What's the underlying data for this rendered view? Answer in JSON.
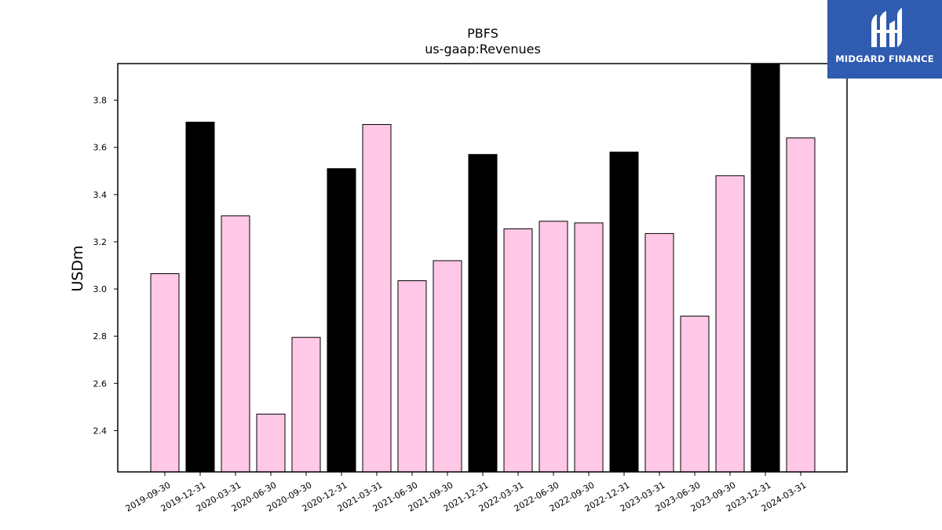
{
  "brand": {
    "name": "MIDGARD FINANCE",
    "background_color": "#2f5bb0"
  },
  "chart_data": {
    "type": "bar",
    "title": "PBFS",
    "subtitle": "us-gaap:Revenues",
    "xlabel": "",
    "ylabel": "USDm",
    "categories": [
      "2019-09-30",
      "2019-12-31",
      "2020-03-31",
      "2020-06-30",
      "2020-09-30",
      "2020-12-31",
      "2021-03-31",
      "2021-06-30",
      "2021-09-30",
      "2021-12-31",
      "2022-03-31",
      "2022-06-30",
      "2022-09-30",
      "2022-12-31",
      "2023-03-31",
      "2023-06-30",
      "2023-09-30",
      "2023-12-31",
      "2024-03-31"
    ],
    "values": [
      3.065,
      3.707,
      3.31,
      2.47,
      2.795,
      3.51,
      3.697,
      3.035,
      3.12,
      3.57,
      3.255,
      3.287,
      3.28,
      3.58,
      3.235,
      2.885,
      3.48,
      3.955,
      3.64
    ],
    "bar_colors": [
      "#ffc8e6",
      "#000000",
      "#ffc8e6",
      "#ffc8e6",
      "#ffc8e6",
      "#000000",
      "#ffc8e6",
      "#ffc8e6",
      "#ffc8e6",
      "#000000",
      "#ffc8e6",
      "#ffc8e6",
      "#ffc8e6",
      "#000000",
      "#ffc8e6",
      "#ffc8e6",
      "#ffc8e6",
      "#000000",
      "#ffc8e6"
    ],
    "ylim": [
      2.225,
      3.955
    ],
    "yticks": [
      2.4,
      2.6,
      2.8,
      3.0,
      3.2,
      3.4,
      3.6,
      3.8
    ],
    "ytick_labels": [
      "2.4",
      "2.6",
      "2.8",
      "3.0",
      "3.2",
      "3.4",
      "3.6",
      "3.8"
    ],
    "grid": false,
    "legend": "none"
  }
}
